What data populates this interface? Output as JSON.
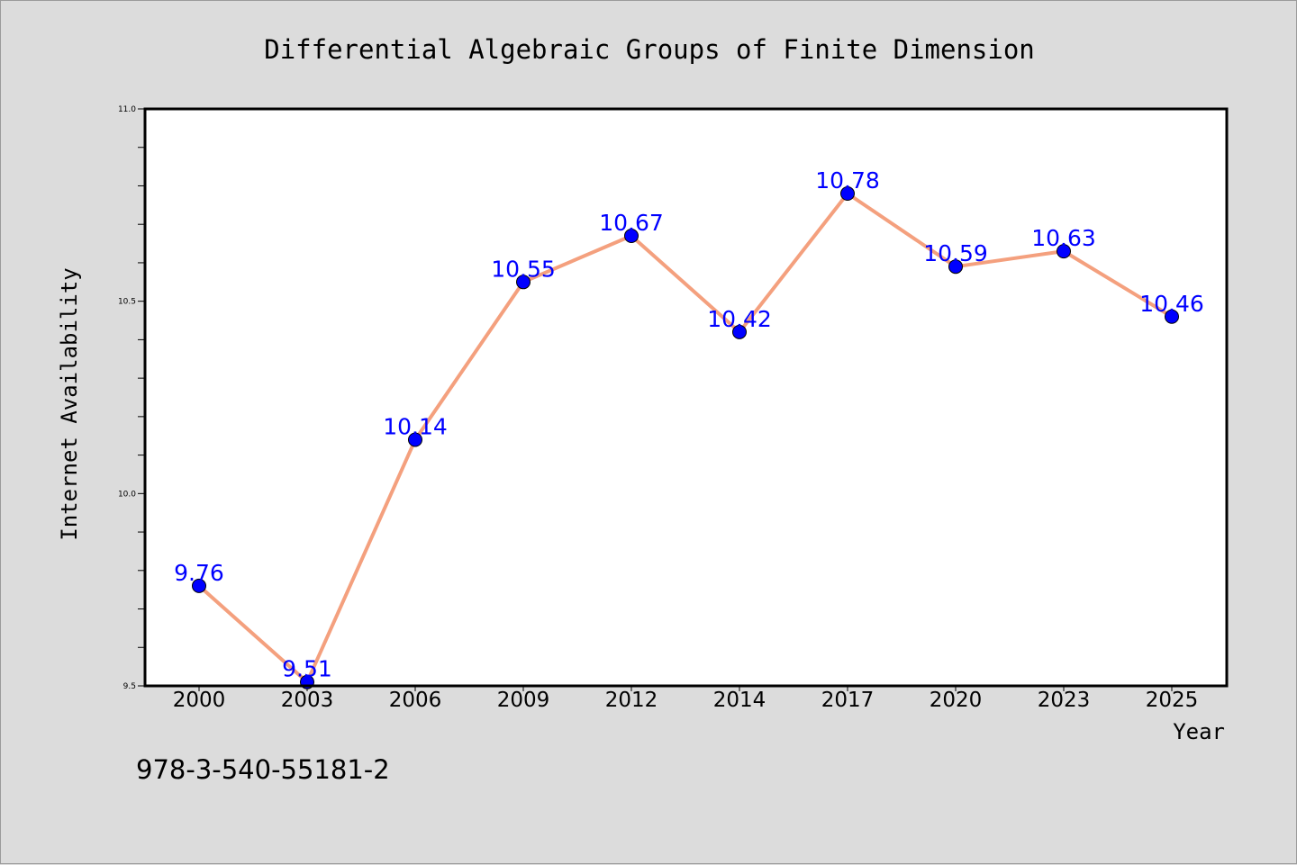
{
  "chart_data": {
    "type": "line",
    "title": "Differential Algebraic Groups of Finite Dimension",
    "xlabel": "Year",
    "ylabel": "Internet Availability",
    "categories": [
      "2000",
      "2003",
      "2006",
      "2009",
      "2012",
      "2014",
      "2017",
      "2020",
      "2023",
      "2025"
    ],
    "series": [
      {
        "values": [
          9.76,
          9.51,
          10.14,
          10.55,
          10.67,
          10.42,
          10.78,
          10.59,
          10.63,
          10.46
        ],
        "data_labels": [
          "9.76",
          "9.51",
          "10.14",
          "10.55",
          "10.67",
          "10.42",
          "10.78",
          "10.59",
          "10.63",
          "10.46"
        ],
        "line_color": "#f4a07e",
        "marker_color": "#0000ff"
      }
    ],
    "ylim": [
      9.5,
      11.0
    ],
    "yticks": [
      "9.5",
      "10.0",
      "10.5",
      "11.0"
    ],
    "grid": false,
    "legend": "none"
  },
  "annotation": {
    "isbn": "978-3-540-55181-2"
  },
  "colors": {
    "figure_background": "#dcdcdc",
    "plot_background": "#ffffff",
    "line": "#f4a07e",
    "marker": "#0000ff",
    "data_label": "#0000ff"
  }
}
